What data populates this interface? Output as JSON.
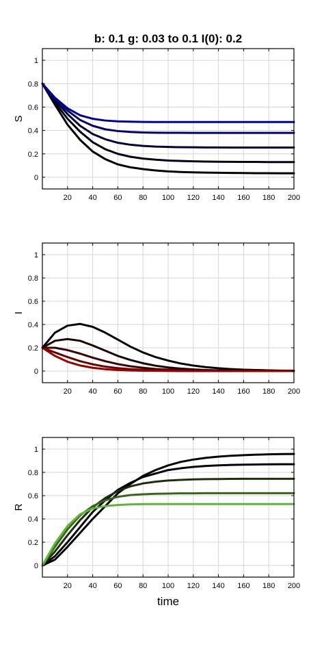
{
  "figure_title": "b: 0.1   g: 0.03 to 0.1   I(0): 0.2",
  "chart_data": [
    {
      "type": "line",
      "title": "b: 0.1   g: 0.03 to 0.1   I(0): 0.2",
      "xlabel": "",
      "ylabel": "S",
      "xlim": [
        0,
        200
      ],
      "ylim": [
        -0.1,
        1.1
      ],
      "xticks": [
        20,
        40,
        60,
        80,
        100,
        120,
        140,
        160,
        180,
        200
      ],
      "yticks": [
        0,
        0.2,
        0.4,
        0.6,
        0.8,
        1
      ],
      "grid": true,
      "x": [
        0,
        10,
        20,
        30,
        40,
        50,
        60,
        70,
        80,
        90,
        100,
        110,
        120,
        130,
        140,
        150,
        160,
        170,
        180,
        190,
        200
      ],
      "series": [
        {
          "color": "#000000",
          "values": [
            0.8,
            0.62,
            0.45,
            0.32,
            0.22,
            0.155,
            0.11,
            0.085,
            0.07,
            0.058,
            0.05,
            0.045,
            0.042,
            0.04,
            0.038,
            0.037,
            0.036,
            0.035,
            0.035,
            0.034,
            0.034
          ]
        },
        {
          "color": "#00001a",
          "values": [
            0.8,
            0.64,
            0.5,
            0.39,
            0.3,
            0.24,
            0.2,
            0.175,
            0.16,
            0.15,
            0.143,
            0.139,
            0.136,
            0.134,
            0.133,
            0.132,
            0.131,
            0.131,
            0.13,
            0.13,
            0.13
          ]
        },
        {
          "color": "#00003c",
          "values": [
            0.8,
            0.66,
            0.54,
            0.44,
            0.37,
            0.325,
            0.295,
            0.278,
            0.268,
            0.262,
            0.259,
            0.257,
            0.256,
            0.255,
            0.255,
            0.254,
            0.254,
            0.254,
            0.254,
            0.254,
            0.254
          ]
        },
        {
          "color": "#00006a",
          "values": [
            0.8,
            0.67,
            0.57,
            0.49,
            0.44,
            0.41,
            0.395,
            0.387,
            0.383,
            0.381,
            0.38,
            0.38,
            0.379,
            0.379,
            0.379,
            0.379,
            0.379,
            0.379,
            0.379,
            0.379,
            0.379
          ]
        },
        {
          "color": "#000099",
          "values": [
            0.8,
            0.68,
            0.59,
            0.53,
            0.5,
            0.485,
            0.478,
            0.475,
            0.473,
            0.472,
            0.472,
            0.472,
            0.472,
            0.472,
            0.472,
            0.472,
            0.472,
            0.472,
            0.472,
            0.472,
            0.472
          ]
        }
      ]
    },
    {
      "type": "line",
      "xlabel": "",
      "ylabel": "I",
      "xlim": [
        0,
        200
      ],
      "ylim": [
        -0.1,
        1.1
      ],
      "xticks": [
        20,
        40,
        60,
        80,
        100,
        120,
        140,
        160,
        180,
        200
      ],
      "yticks": [
        0,
        0.2,
        0.4,
        0.6,
        0.8,
        1
      ],
      "grid": true,
      "x": [
        0,
        10,
        20,
        30,
        40,
        50,
        60,
        70,
        80,
        90,
        100,
        110,
        120,
        130,
        140,
        150,
        160,
        170,
        180,
        190,
        200
      ],
      "series": [
        {
          "color": "#000000",
          "values": [
            0.2,
            0.33,
            0.39,
            0.405,
            0.38,
            0.33,
            0.27,
            0.21,
            0.16,
            0.12,
            0.09,
            0.065,
            0.047,
            0.034,
            0.024,
            0.017,
            0.012,
            0.009,
            0.006,
            0.004,
            0.003
          ]
        },
        {
          "color": "#1a0000",
          "values": [
            0.2,
            0.26,
            0.275,
            0.26,
            0.22,
            0.175,
            0.13,
            0.095,
            0.067,
            0.046,
            0.031,
            0.021,
            0.014,
            0.009,
            0.006,
            0.004,
            0.003,
            0.002,
            0.001,
            0.001,
            0.0
          ]
        },
        {
          "color": "#3c0000",
          "values": [
            0.2,
            0.2,
            0.18,
            0.15,
            0.115,
            0.085,
            0.06,
            0.041,
            0.028,
            0.018,
            0.012,
            0.008,
            0.005,
            0.003,
            0.002,
            0.001,
            0.001,
            0.0,
            0.0,
            0.0,
            0.0
          ]
        },
        {
          "color": "#6a0000",
          "values": [
            0.2,
            0.16,
            0.12,
            0.085,
            0.058,
            0.038,
            0.025,
            0.016,
            0.01,
            0.006,
            0.004,
            0.002,
            0.001,
            0.001,
            0.0,
            0.0,
            0.0,
            0.0,
            0.0,
            0.0,
            0.0
          ]
        },
        {
          "color": "#990000",
          "values": [
            0.2,
            0.13,
            0.08,
            0.048,
            0.028,
            0.016,
            0.009,
            0.005,
            0.003,
            0.002,
            0.001,
            0.0,
            0.0,
            0.0,
            0.0,
            0.0,
            0.0,
            0.0,
            0.0,
            0.0,
            0.0
          ]
        }
      ]
    },
    {
      "type": "line",
      "xlabel": "time",
      "ylabel": "R",
      "xlim": [
        0,
        200
      ],
      "ylim": [
        -0.1,
        1.1
      ],
      "xticks": [
        20,
        40,
        60,
        80,
        100,
        120,
        140,
        160,
        180,
        200
      ],
      "yticks": [
        0,
        0.2,
        0.4,
        0.6,
        0.8,
        1
      ],
      "grid": true,
      "x": [
        0,
        10,
        20,
        30,
        40,
        50,
        60,
        70,
        80,
        90,
        100,
        110,
        120,
        130,
        140,
        150,
        160,
        170,
        180,
        190,
        200
      ],
      "series": [
        {
          "color": "#000000",
          "values": [
            0.0,
            0.05,
            0.16,
            0.28,
            0.4,
            0.51,
            0.62,
            0.7,
            0.77,
            0.82,
            0.86,
            0.89,
            0.91,
            0.925,
            0.935,
            0.943,
            0.948,
            0.952,
            0.955,
            0.957,
            0.958
          ]
        },
        {
          "color": "#000000",
          "values": [
            0.0,
            0.08,
            0.2,
            0.33,
            0.46,
            0.56,
            0.65,
            0.71,
            0.76,
            0.79,
            0.82,
            0.835,
            0.847,
            0.855,
            0.86,
            0.864,
            0.866,
            0.868,
            0.869,
            0.87,
            0.87
          ]
        },
        {
          "color": "#1c2e0a",
          "values": [
            0.0,
            0.12,
            0.26,
            0.39,
            0.5,
            0.58,
            0.64,
            0.68,
            0.705,
            0.72,
            0.73,
            0.735,
            0.74,
            0.742,
            0.743,
            0.744,
            0.745,
            0.745,
            0.745,
            0.745,
            0.745
          ]
        },
        {
          "color": "#386619",
          "values": [
            0.0,
            0.16,
            0.31,
            0.43,
            0.51,
            0.56,
            0.59,
            0.605,
            0.612,
            0.616,
            0.618,
            0.62,
            0.62,
            0.621,
            0.621,
            0.621,
            0.621,
            0.621,
            0.621,
            0.621,
            0.621
          ]
        },
        {
          "color": "#5fb53a",
          "values": [
            0.0,
            0.19,
            0.34,
            0.44,
            0.49,
            0.51,
            0.52,
            0.525,
            0.527,
            0.528,
            0.528,
            0.528,
            0.528,
            0.528,
            0.528,
            0.528,
            0.528,
            0.528,
            0.528,
            0.528,
            0.528
          ]
        }
      ]
    }
  ]
}
